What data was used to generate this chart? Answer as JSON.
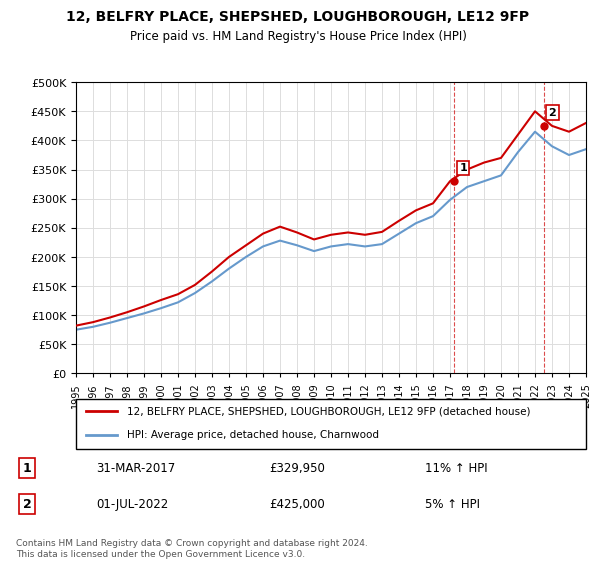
{
  "title": "12, BELFRY PLACE, SHEPSHED, LOUGHBOROUGH, LE12 9FP",
  "subtitle": "Price paid vs. HM Land Registry's House Price Index (HPI)",
  "legend_line1": "12, BELFRY PLACE, SHEPSHED, LOUGHBOROUGH, LE12 9FP (detached house)",
  "legend_line2": "HPI: Average price, detached house, Charnwood",
  "annotation1_label": "1",
  "annotation1_date": "31-MAR-2017",
  "annotation1_price": "£329,950",
  "annotation1_hpi": "11% ↑ HPI",
  "annotation2_label": "2",
  "annotation2_date": "01-JUL-2022",
  "annotation2_price": "£425,000",
  "annotation2_hpi": "5% ↑ HPI",
  "footer": "Contains HM Land Registry data © Crown copyright and database right 2024.\nThis data is licensed under the Open Government Licence v3.0.",
  "red_color": "#cc0000",
  "blue_color": "#6699cc",
  "annotation_color": "#cc0000",
  "ylim": [
    0,
    500000
  ],
  "yticks": [
    0,
    50000,
    100000,
    150000,
    200000,
    250000,
    300000,
    350000,
    400000,
    450000,
    500000
  ],
  "hpi_years": [
    1995,
    1996,
    1997,
    1998,
    1999,
    2000,
    2001,
    2002,
    2003,
    2004,
    2005,
    2006,
    2007,
    2008,
    2009,
    2010,
    2011,
    2012,
    2013,
    2014,
    2015,
    2016,
    2017,
    2018,
    2019,
    2020,
    2021,
    2022,
    2023,
    2024,
    2025
  ],
  "hpi_values": [
    75000,
    80000,
    87000,
    95000,
    103000,
    112000,
    122000,
    138000,
    158000,
    180000,
    200000,
    218000,
    228000,
    220000,
    210000,
    218000,
    222000,
    218000,
    222000,
    240000,
    258000,
    270000,
    298000,
    320000,
    330000,
    340000,
    380000,
    415000,
    390000,
    375000,
    385000
  ],
  "red_years": [
    1995,
    1996,
    1997,
    1998,
    1999,
    2000,
    2001,
    2002,
    2003,
    2004,
    2005,
    2006,
    2007,
    2008,
    2009,
    2010,
    2011,
    2012,
    2013,
    2014,
    2015,
    2016,
    2017,
    2018,
    2019,
    2020,
    2021,
    2022,
    2023,
    2024,
    2025
  ],
  "red_values": [
    82000,
    88000,
    96000,
    105000,
    115000,
    126000,
    136000,
    152000,
    175000,
    200000,
    220000,
    240000,
    252000,
    242000,
    230000,
    238000,
    242000,
    238000,
    243000,
    262000,
    280000,
    292000,
    330000,
    350000,
    362000,
    370000,
    410000,
    450000,
    425000,
    415000,
    430000
  ],
  "purchase1_x": 2017.25,
  "purchase1_y": 329950,
  "purchase2_x": 2022.5,
  "purchase2_y": 425000,
  "xmin": 1995,
  "xmax": 2025
}
